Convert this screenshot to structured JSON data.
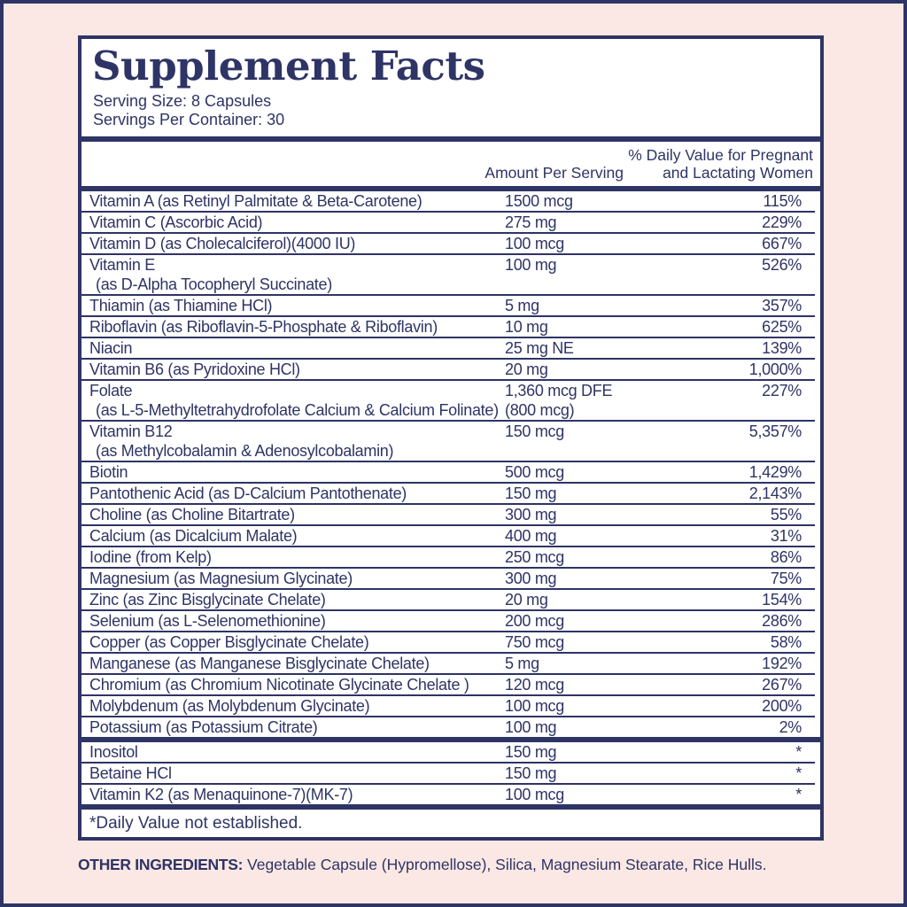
{
  "colors": {
    "navy": "#2e3465",
    "pink_background": "#fbe8e4",
    "panel_white": "#ffffff"
  },
  "facts": {
    "title": "Supplement Facts",
    "serving_size": "Serving Size: 8 Capsules",
    "servings_per_container": "Servings Per Container: 30",
    "columns": {
      "amount": "Amount Per Serving",
      "dv_line1": "% Daily Value for Pregnant",
      "dv_line2": "and Lactating Women"
    },
    "main_rows": [
      {
        "name": "Vitamin A (as Retinyl Palmitate & Beta-Carotene)",
        "amount": "1500 mcg",
        "dv": "115%"
      },
      {
        "name": "Vitamin C (Ascorbic Acid)",
        "amount": "275 mg",
        "dv": "229%"
      },
      {
        "name": "Vitamin D (as Cholecalciferol)(4000 IU)",
        "amount": "100 mcg",
        "dv": "667%"
      },
      {
        "name": "Vitamin E",
        "sub": "(as D-Alpha Tocopheryl Succinate)",
        "amount": "100 mg",
        "dv": "526%"
      },
      {
        "name": "Thiamin (as Thiamine HCl)",
        "amount": "5 mg",
        "dv": "357%"
      },
      {
        "name": "Riboflavin (as Riboflavin-5-Phosphate & Riboflavin)",
        "amount": "10 mg",
        "dv": "625%"
      },
      {
        "name": "Niacin",
        "amount": "25 mg NE",
        "dv": "139%"
      },
      {
        "name": "Vitamin B6 (as Pyridoxine HCl)",
        "amount": "20 mg",
        "dv": "1,000%"
      },
      {
        "name": "Folate",
        "sub": "(as L-5-Methyltetrahydrofolate Calcium & Calcium Folinate)",
        "amount": "1,360 mcg DFE",
        "amount_sub": "(800 mcg)",
        "dv": "227%"
      },
      {
        "name": "Vitamin B12",
        "sub": "(as Methylcobalamin & Adenosylcobalamin)",
        "amount": "150 mcg",
        "dv": "5,357%"
      },
      {
        "name": "Biotin",
        "amount": "500 mcg",
        "dv": "1,429%"
      },
      {
        "name": "Pantothenic Acid (as D-Calcium Pantothenate)",
        "amount": "150 mg",
        "dv": "2,143%"
      },
      {
        "name": "Choline (as Choline Bitartrate)",
        "amount": "300 mg",
        "dv": "55%"
      },
      {
        "name": "Calcium (as Dicalcium Malate)",
        "amount": "400 mg",
        "dv": "31%"
      },
      {
        "name": "Iodine (from Kelp)",
        "amount": "250 mcg",
        "dv": "86%"
      },
      {
        "name": "Magnesium (as Magnesium Glycinate)",
        "amount": "300 mg",
        "dv": "75%"
      },
      {
        "name": "Zinc (as Zinc Bisglycinate Chelate)",
        "amount": "20 mg",
        "dv": "154%"
      },
      {
        "name": "Selenium (as L-Selenomethionine)",
        "amount": "200 mcg",
        "dv": "286%"
      },
      {
        "name": "Copper (as Copper Bisglycinate Chelate)",
        "amount": "750 mcg",
        "dv": "58%"
      },
      {
        "name": "Manganese (as Manganese Bisglycinate Chelate)",
        "amount": "5 mg",
        "dv": "192%"
      },
      {
        "name": "Chromium (as Chromium Nicotinate Glycinate Chelate )",
        "amount": "120 mcg",
        "dv": "267%"
      },
      {
        "name": "Molybdenum (as Molybdenum Glycinate)",
        "amount": "100 mcg",
        "dv": "200%"
      },
      {
        "name": "Potassium (as Potassium Citrate)",
        "amount": "100 mg",
        "dv": "2%"
      }
    ],
    "no_dv_rows": [
      {
        "name": "Inositol",
        "amount": "150 mg",
        "dv": "*"
      },
      {
        "name": "Betaine HCl",
        "amount": "150 mg",
        "dv": "*"
      },
      {
        "name": "Vitamin K2 (as Menaquinone-7)(MK-7)",
        "amount": "100 mcg",
        "dv": "*"
      }
    ],
    "footnote": "*Daily Value not established."
  },
  "other_ingredients": {
    "label": "OTHER INGREDIENTS:",
    "text": " Vegetable Capsule (Hypromellose), Silica, Magnesium Stearate, Rice Hulls."
  }
}
